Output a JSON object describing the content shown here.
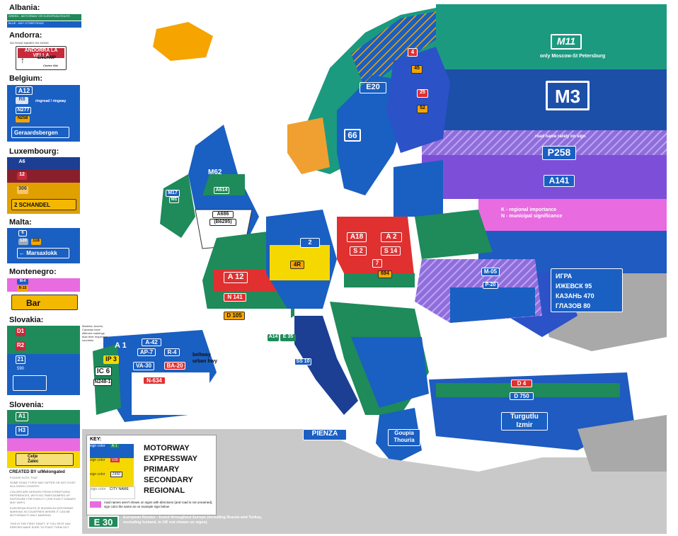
{
  "legend": {
    "albania": {
      "title": "Albania:",
      "line1": "GREEN - MOTORWAY OR EUROPEAN ROUTE",
      "line2": "BLUE - ANY OTHER ROAD"
    },
    "andorra": {
      "title": "Andorra:",
      "note": "NO ROAD NAMES ON SIGNS",
      "sign_top": "ANDORRA LA VELLA",
      "sign_bottom": "ENCAMP",
      "sign_sub": "Centre Vila"
    },
    "belgium": {
      "title": "Belgium:",
      "a": "A12",
      "r": "R8",
      "ringroad": "ringroad / ringway",
      "n1": "N277",
      "n2": "N258",
      "dir": "Geraardsbergen"
    },
    "luxembourg": {
      "title": "Luxembourg:",
      "a": "A6",
      "n": "12",
      "cr": "306",
      "dir": "2  SCHANDEL"
    },
    "malta": {
      "title": "Malta:",
      "a": "6",
      "b1": "120",
      "b2": "118",
      "dir": "Marsaxlokk"
    },
    "montenegro": {
      "title": "Montenegro:",
      "m": "M-4",
      "r": "R-15",
      "dir": "Bar"
    },
    "slovakia": {
      "title": "Slovakia:",
      "d": "D1",
      "r": "R2",
      "n": "21",
      "s": "590"
    },
    "slovenia": {
      "title": "Slovenia:",
      "a": "A1",
      "h": "H3",
      "dir1": "Celje",
      "dir2": "Žalec"
    },
    "credit": "CREATED BY u/Melongated",
    "notes": [
      "PLEASE NOTE THAT:",
      "SOME ROAD TYPES MAY DIFFER OR NOT EXIST IN A GIVEN COUNTRY",
      "COLORS ARE DERIVED FROM STREETVIEW REFERENCES, WITH NO TIMES BUMPED UP EXPOSURE FOR FIDELITY (THE EXACT SHADES MAY VARY)",
      "EUROPEAN ROUTE IS SHOWN AS MOTORWAY MARKING IN COUNTRIES WHERE IT CAN BE MOTORWAY'S ONLY MARKING",
      "THIS IS THE FIRST DRAFT, IF YOU SPOT ANY ERRORS MAKE SURE TO POINT THEM OUT"
    ]
  },
  "map": {
    "russia": {
      "m11": "M11",
      "m11_note": "only Moscow-St Petersburg",
      "m3": "M3",
      "rarely_note": "road name rarely on sign",
      "p258": "P258",
      "a141": "A141",
      "k_note": "K - regional importance",
      "n_note": "N - municipal significance",
      "sign_lines": [
        "ИГРА",
        "ИЖЕВСК  95",
        "КАЗАНЬ  470",
        "ГЛАЗОВ  80"
      ]
    },
    "labels": {
      "e20": "E20",
      "n4": "4",
      "n45": "45",
      "n25": "25",
      "n52": "52",
      "n66": "66",
      "m62": "M62",
      "a686": "A686",
      "b6295": "(B6295)",
      "a614": "A614",
      "m17": "M17",
      "m1": "M1",
      "n2_ie": "2",
      "a12_fr": "A 12",
      "n141": "N 141",
      "d105": "D 105",
      "n2_de": "2",
      "n4r": "4R",
      "a18": "A18",
      "a2_pl": "A 2",
      "s2": "S 2",
      "s14": "S 14",
      "n7": "7",
      "n694": "694",
      "m05": "M-05",
      "p20": "P-20",
      "a1_es": "A 1",
      "a42": "A-42",
      "ap7": "AP-7",
      "r4": "R-4",
      "va30": "VA-30",
      "ba20": "BA-20",
      "n634": "N-634",
      "beltway": "beltway",
      "urban_hwy": "urban hwy",
      "ip3": "IP 3",
      "ic6": "IC 6",
      "n248": "N248-1",
      "e35": "E 35",
      "a14": "A14",
      "ss10": "SS 10",
      "d750": "D 750",
      "pienza": "PIENZA",
      "goupia": "Goupia",
      "thouria": "Thouria",
      "turgutlu": "Turgutlu",
      "izmir": "Izmir",
      "d4": "D 4",
      "portugal_note": "Madeira, Azores, Canarias have different markings than their respective countries"
    }
  },
  "key": {
    "title": "KEY:",
    "rows": [
      {
        "color": "#1a5fc2",
        "text": "sign color",
        "example": "A-1"
      },
      {
        "color": "#f5d800",
        "text": "sign color",
        "example": "V25"
      },
      {
        "color": "#f5d800",
        "text": "sign color",
        "example": "Z450"
      },
      {
        "color": "#ffffff",
        "text": "sign color",
        "example": "CITY NAME"
      }
    ],
    "types": [
      "MOTORWAY",
      "EXPRESSWAY",
      "PRIMARY",
      "SECONDARY",
      "REGIONAL"
    ],
    "pink_note": "road names aren't shown on signs with directions (and road is not unnamed), sign color the same as on example sign below",
    "eroute": "E 30",
    "eroute_note": "European Routes - found throughout Europe (including Russia and Turkey, excluding Iceland, in UK not shown on signs)"
  },
  "colors": {
    "motorway_green": "#1f8a5a",
    "motorway_blue": "#1a5fc2",
    "expressway_teal": "#2a9d8f",
    "primary_red": "#e03030",
    "orange": "#f5a400",
    "yellow": "#f5d800",
    "pink": "#e86be0",
    "navy": "#1c3f94",
    "russia_blue": "#1f5bc0",
    "russia_purple": "#7d4fd8",
    "nonmap_gray": "#c9c9c9"
  }
}
